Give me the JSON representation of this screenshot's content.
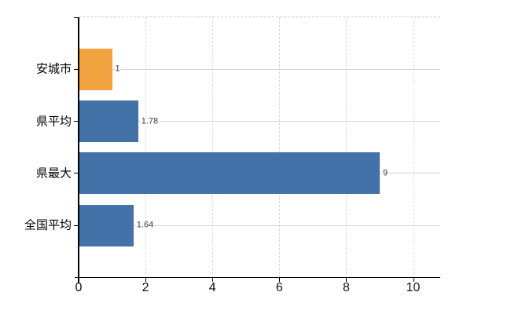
{
  "chart_data": {
    "type": "bar",
    "orientation": "horizontal",
    "categories": [
      "安城市",
      "県平均",
      "県最大",
      "全国平均"
    ],
    "values": [
      1,
      1.78,
      9,
      1.64
    ],
    "value_labels": [
      "1",
      "1.78",
      "9",
      "1.64"
    ],
    "xticks": [
      0,
      2,
      4,
      6,
      8,
      10
    ],
    "xlim": [
      0,
      10.8
    ],
    "bar_colors": [
      "#f2a23e",
      "#4272a8",
      "#4272a8",
      "#4272a8"
    ],
    "highlight_color": "#f2a23e",
    "series_color": "#4272a8",
    "grid": true,
    "legend_position": "none"
  }
}
